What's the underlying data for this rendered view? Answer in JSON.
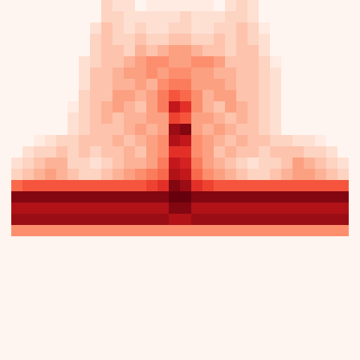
{
  "chart_data": {
    "type": "heatmap",
    "color": "Reds",
    "tick_labels": false,
    "cells": [
      [
        0,
        0,
        0,
        0,
        0,
        0,
        0,
        0,
        0,
        0.15,
        0.1,
        0.1,
        0,
        0.05,
        0.05,
        0.05,
        0.05,
        0.05,
        0.05,
        0,
        0.1,
        0.15,
        0.1,
        0,
        0,
        0,
        0,
        0,
        0,
        0,
        0,
        0
      ],
      [
        0,
        0,
        0,
        0,
        0,
        0,
        0,
        0,
        0,
        0.15,
        0.15,
        0.1,
        0.1,
        0.1,
        0.1,
        0.1,
        0.15,
        0.1,
        0.1,
        0.1,
        0.15,
        0.15,
        0.1,
        0,
        0,
        0,
        0,
        0,
        0,
        0,
        0,
        0
      ],
      [
        0,
        0,
        0,
        0,
        0,
        0,
        0,
        0,
        0.1,
        0.2,
        0.15,
        0.1,
        0.15,
        0.1,
        0.1,
        0.15,
        0.15,
        0.1,
        0.1,
        0.15,
        0.15,
        0.2,
        0.15,
        0.05,
        0,
        0,
        0,
        0,
        0,
        0,
        0,
        0
      ],
      [
        0,
        0,
        0,
        0,
        0,
        0,
        0,
        0,
        0.15,
        0.2,
        0.15,
        0.15,
        0.2,
        0.15,
        0.15,
        0.2,
        0.2,
        0.15,
        0.15,
        0.2,
        0.15,
        0.2,
        0.15,
        0.1,
        0,
        0,
        0,
        0,
        0,
        0,
        0,
        0
      ],
      [
        0,
        0,
        0,
        0,
        0,
        0,
        0,
        0,
        0.15,
        0.2,
        0.2,
        0.15,
        0.25,
        0.2,
        0.25,
        0.3,
        0.3,
        0.25,
        0.2,
        0.2,
        0.15,
        0.2,
        0.2,
        0.1,
        0,
        0,
        0,
        0,
        0,
        0,
        0,
        0
      ],
      [
        0,
        0,
        0,
        0,
        0,
        0,
        0,
        0.1,
        0.15,
        0.2,
        0.2,
        0.25,
        0.3,
        0.35,
        0.35,
        0.3,
        0.3,
        0.35,
        0.35,
        0.3,
        0.2,
        0.2,
        0.2,
        0.15,
        0.05,
        0,
        0,
        0,
        0,
        0,
        0,
        0
      ],
      [
        0,
        0,
        0,
        0,
        0,
        0,
        0,
        0.1,
        0.2,
        0.2,
        0.25,
        0.3,
        0.3,
        0.35,
        0.3,
        0.35,
        0.35,
        0.3,
        0.3,
        0.25,
        0.25,
        0.2,
        0.2,
        0.15,
        0.1,
        0,
        0,
        0,
        0,
        0,
        0,
        0
      ],
      [
        0,
        0,
        0,
        0,
        0,
        0,
        0,
        0.1,
        0.2,
        0.2,
        0.25,
        0.25,
        0.3,
        0.25,
        0.35,
        0.4,
        0.4,
        0.3,
        0.3,
        0.3,
        0.25,
        0.2,
        0.2,
        0.15,
        0.1,
        0,
        0,
        0,
        0,
        0,
        0,
        0
      ],
      [
        0,
        0,
        0,
        0,
        0,
        0,
        0,
        0.15,
        0.2,
        0.2,
        0.3,
        0.3,
        0.25,
        0.3,
        0.4,
        0.5,
        0.45,
        0.35,
        0.25,
        0.3,
        0.3,
        0.2,
        0.2,
        0.15,
        0.1,
        0,
        0,
        0,
        0,
        0,
        0,
        0
      ],
      [
        0,
        0,
        0,
        0,
        0,
        0,
        0.05,
        0.15,
        0.2,
        0.25,
        0.3,
        0.25,
        0.2,
        0.3,
        0.4,
        0.7,
        0.6,
        0.35,
        0.25,
        0.2,
        0.3,
        0.25,
        0.2,
        0.15,
        0.1,
        0,
        0,
        0,
        0,
        0,
        0,
        0
      ],
      [
        0,
        0,
        0,
        0,
        0,
        0,
        0.1,
        0.15,
        0.2,
        0.25,
        0.2,
        0.25,
        0.25,
        0.3,
        0.3,
        0.55,
        0.5,
        0.3,
        0.3,
        0.25,
        0.2,
        0.25,
        0.2,
        0.15,
        0.1,
        0,
        0,
        0,
        0,
        0,
        0,
        0
      ],
      [
        0,
        0,
        0,
        0,
        0,
        0,
        0.1,
        0.15,
        0.2,
        0.2,
        0.2,
        0.25,
        0.3,
        0.25,
        0.3,
        0.8,
        0.85,
        0.3,
        0.25,
        0.3,
        0.25,
        0.2,
        0.2,
        0.15,
        0.1,
        0,
        0,
        0,
        0,
        0,
        0,
        0
      ],
      [
        0,
        0,
        0,
        0.05,
        0.1,
        0.15,
        0.15,
        0.2,
        0.2,
        0.2,
        0.25,
        0.2,
        0.25,
        0.3,
        0.35,
        0.75,
        0.7,
        0.35,
        0.3,
        0.25,
        0.2,
        0.25,
        0.2,
        0.2,
        0.15,
        0.15,
        0.1,
        0.1,
        0.05,
        0,
        0,
        0
      ],
      [
        0,
        0,
        0.1,
        0.15,
        0.15,
        0.2,
        0.15,
        0.2,
        0.15,
        0.2,
        0.2,
        0.25,
        0.2,
        0.3,
        0.35,
        0.6,
        0.6,
        0.35,
        0.3,
        0.2,
        0.25,
        0.2,
        0.2,
        0.15,
        0.2,
        0.2,
        0.2,
        0.15,
        0.15,
        0.1,
        0,
        0
      ],
      [
        0,
        0.1,
        0.15,
        0.2,
        0.25,
        0.25,
        0.15,
        0.15,
        0.1,
        0.15,
        0.2,
        0.25,
        0.25,
        0.3,
        0.4,
        0.7,
        0.65,
        0.4,
        0.3,
        0.25,
        0.2,
        0.15,
        0.1,
        0.15,
        0.15,
        0.2,
        0.3,
        0.25,
        0.2,
        0.15,
        0.1,
        0
      ],
      [
        0,
        0.15,
        0.2,
        0.25,
        0.3,
        0.25,
        0.2,
        0.15,
        0.15,
        0.2,
        0.25,
        0.3,
        0.35,
        0.4,
        0.45,
        0.75,
        0.7,
        0.45,
        0.35,
        0.3,
        0.25,
        0.2,
        0.15,
        0.15,
        0.2,
        0.25,
        0.3,
        0.3,
        0.25,
        0.2,
        0.15,
        0
      ],
      [
        0,
        0.45,
        0.5,
        0.5,
        0.5,
        0.5,
        0.5,
        0.5,
        0.5,
        0.5,
        0.5,
        0.5,
        0.5,
        0.55,
        0.6,
        0.85,
        0.8,
        0.6,
        0.55,
        0.5,
        0.5,
        0.5,
        0.5,
        0.5,
        0.5,
        0.5,
        0.5,
        0.5,
        0.5,
        0.5,
        0.5,
        0
      ],
      [
        0,
        0.85,
        0.85,
        0.85,
        0.85,
        0.85,
        0.85,
        0.85,
        0.85,
        0.85,
        0.85,
        0.85,
        0.85,
        0.85,
        0.85,
        0.9,
        0.9,
        0.85,
        0.85,
        0.85,
        0.85,
        0.85,
        0.85,
        0.85,
        0.85,
        0.85,
        0.85,
        0.85,
        0.85,
        0.85,
        0.85,
        0
      ],
      [
        0,
        0.75,
        0.75,
        0.75,
        0.75,
        0.75,
        0.75,
        0.75,
        0.75,
        0.75,
        0.75,
        0.75,
        0.75,
        0.75,
        0.75,
        0.85,
        0.85,
        0.75,
        0.75,
        0.75,
        0.75,
        0.75,
        0.75,
        0.75,
        0.75,
        0.75,
        0.75,
        0.75,
        0.75,
        0.75,
        0.75,
        0
      ],
      [
        0,
        0.8,
        0.8,
        0.8,
        0.8,
        0.8,
        0.8,
        0.8,
        0.8,
        0.8,
        0.8,
        0.8,
        0.8,
        0.8,
        0.8,
        0.75,
        0.75,
        0.8,
        0.8,
        0.8,
        0.8,
        0.8,
        0.8,
        0.8,
        0.8,
        0.8,
        0.8,
        0.8,
        0.8,
        0.8,
        0.8,
        0
      ],
      [
        0,
        0.35,
        0.35,
        0.35,
        0.35,
        0.35,
        0.35,
        0.35,
        0.35,
        0.35,
        0.35,
        0.35,
        0.35,
        0.35,
        0.35,
        0.35,
        0.35,
        0.35,
        0.35,
        0.35,
        0.35,
        0.35,
        0.35,
        0.35,
        0.35,
        0.35,
        0.35,
        0.35,
        0.35,
        0.35,
        0.35,
        0
      ],
      [
        0,
        0,
        0,
        0,
        0,
        0,
        0,
        0,
        0,
        0,
        0,
        0,
        0,
        0,
        0,
        0,
        0,
        0,
        0,
        0,
        0,
        0,
        0,
        0,
        0,
        0,
        0,
        0,
        0,
        0,
        0,
        0
      ],
      [
        0,
        0,
        0,
        0,
        0,
        0,
        0,
        0,
        0,
        0,
        0,
        0,
        0,
        0,
        0,
        0,
        0,
        0,
        0,
        0,
        0,
        0,
        0,
        0,
        0,
        0,
        0,
        0,
        0,
        0,
        0,
        0
      ],
      [
        0,
        0,
        0,
        0,
        0,
        0,
        0,
        0,
        0,
        0,
        0,
        0,
        0,
        0,
        0,
        0,
        0,
        0,
        0,
        0,
        0,
        0,
        0,
        0,
        0,
        0,
        0,
        0,
        0,
        0,
        0,
        0
      ],
      [
        0,
        0,
        0,
        0,
        0,
        0,
        0,
        0,
        0,
        0,
        0,
        0,
        0,
        0,
        0,
        0,
        0,
        0,
        0,
        0,
        0,
        0,
        0,
        0,
        0,
        0,
        0,
        0,
        0,
        0,
        0,
        0
      ],
      [
        0,
        0,
        0,
        0,
        0,
        0,
        0,
        0,
        0,
        0,
        0,
        0,
        0,
        0,
        0,
        0,
        0,
        0,
        0,
        0,
        0,
        0,
        0,
        0,
        0,
        0,
        0,
        0,
        0,
        0,
        0,
        0
      ],
      [
        0,
        0,
        0,
        0,
        0,
        0,
        0,
        0,
        0,
        0,
        0,
        0,
        0,
        0,
        0,
        0,
        0,
        0,
        0,
        0,
        0,
        0,
        0,
        0,
        0,
        0,
        0,
        0,
        0,
        0,
        0,
        0
      ],
      [
        0,
        0,
        0,
        0,
        0,
        0,
        0,
        0,
        0,
        0,
        0,
        0,
        0,
        0,
        0,
        0,
        0,
        0,
        0,
        0,
        0,
        0,
        0,
        0,
        0,
        0,
        0,
        0,
        0,
        0,
        0,
        0
      ],
      [
        0,
        0,
        0,
        0,
        0,
        0,
        0,
        0,
        0,
        0,
        0,
        0,
        0,
        0,
        0,
        0,
        0,
        0,
        0,
        0,
        0,
        0,
        0,
        0,
        0,
        0,
        0,
        0,
        0,
        0,
        0,
        0
      ],
      [
        0,
        0,
        0,
        0,
        0,
        0,
        0,
        0,
        0,
        0,
        0,
        0,
        0,
        0,
        0,
        0,
        0,
        0,
        0,
        0,
        0,
        0,
        0,
        0,
        0,
        0,
        0,
        0,
        0,
        0,
        0,
        0
      ],
      [
        0,
        0,
        0,
        0,
        0,
        0,
        0,
        0,
        0,
        0,
        0,
        0,
        0,
        0,
        0,
        0,
        0,
        0,
        0,
        0,
        0,
        0,
        0,
        0,
        0,
        0,
        0,
        0,
        0,
        0,
        0,
        0
      ],
      [
        0,
        0,
        0,
        0,
        0,
        0,
        0,
        0,
        0,
        0,
        0,
        0,
        0,
        0,
        0,
        0,
        0,
        0,
        0,
        0,
        0,
        0,
        0,
        0,
        0,
        0,
        0,
        0,
        0,
        0,
        0,
        0
      ]
    ]
  }
}
